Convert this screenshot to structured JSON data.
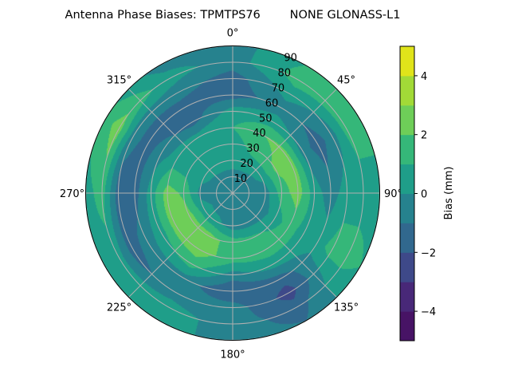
{
  "chart_data": {
    "type": "heatmap",
    "subtype": "polar filled contour",
    "title": "Antenna Phase Biases: TPMTPS76        NONE GLONASS-L1",
    "angular_direction": "clockwise",
    "zero_location": "top",
    "angular_tick_labels": [
      "0°",
      "45°",
      "90°",
      "135°",
      "180°",
      "225°",
      "270°",
      "315°"
    ],
    "radial_tick_labels": [
      "10",
      "20",
      "30",
      "40",
      "50",
      "60",
      "70",
      "80",
      "90"
    ],
    "radial_range": [
      0,
      90
    ],
    "grid": true,
    "colormap": "viridis",
    "levels": [
      -5,
      -4,
      -3,
      -2,
      -1,
      0,
      1,
      2,
      3,
      4,
      5
    ],
    "level_colors": [
      "#471365",
      "#482878",
      "#3e4989",
      "#31688e",
      "#26828e",
      "#1f9e89",
      "#35b779",
      "#6ece58",
      "#a2da37",
      "#e0e41a"
    ],
    "colorbar": {
      "label": "Bias (mm)",
      "tick_labels": [
        "−4",
        "−2",
        "0",
        "2",
        "4"
      ],
      "ticks": [
        -4,
        -2,
        0,
        2,
        4
      ],
      "range": [
        -5,
        5
      ],
      "placement": "right"
    },
    "grid_azimuths_deg": [
      0,
      30,
      60,
      90,
      120,
      150,
      180,
      210,
      240,
      270,
      300,
      330
    ],
    "grid_radii": [
      0,
      10,
      20,
      30,
      40,
      50,
      60,
      70,
      80,
      90
    ],
    "values_mm": [
      [
        -0.5,
        -0.5,
        -0.5,
        -0.5,
        -0.5,
        -0.5,
        -0.5,
        -0.5,
        -0.5,
        -0.5,
        -0.5,
        -0.5
      ],
      [
        -0.4,
        -0.4,
        -0.5,
        -0.5,
        -0.5,
        -0.5,
        -0.5,
        -0.5,
        -0.4,
        -0.5,
        -0.4,
        -0.4
      ],
      [
        0.5,
        0.5,
        0.3,
        -0.5,
        -0.5,
        -0.5,
        -0.5,
        0.3,
        0.5,
        -0.3,
        0.3,
        0.5
      ],
      [
        0.5,
        1.5,
        2.2,
        1.5,
        0.5,
        1.2,
        1.5,
        2.5,
        2.5,
        1.8,
        0.5,
        1.0
      ],
      [
        1.0,
        2.0,
        2.5,
        2.5,
        1.5,
        1.5,
        1.5,
        2.5,
        2.5,
        2.5,
        0.5,
        0.5
      ],
      [
        0.5,
        0.5,
        -0.5,
        0.5,
        0.5,
        0.5,
        -0.5,
        1.5,
        0.5,
        0.5,
        -0.5,
        -1.5
      ],
      [
        -1.5,
        -0.5,
        -1.5,
        -0.5,
        0.5,
        -1.5,
        -2.0,
        -0.5,
        -0.5,
        -1.5,
        -1.5,
        -1.5
      ],
      [
        -1.5,
        0.5,
        -0.5,
        0.5,
        1.5,
        -2.5,
        -0.5,
        -0.5,
        -1.5,
        -1.5,
        -0.5,
        -0.5
      ],
      [
        -0.5,
        1.5,
        1.5,
        0.5,
        1.5,
        -1.5,
        -0.5,
        0.5,
        0.5,
        1.5,
        2.5,
        0.5
      ],
      [
        -0.5,
        1.0,
        1.5,
        0.5,
        1.0,
        -1.0,
        -0.5,
        0.5,
        0.5,
        0.5,
        1.5,
        -0.5
      ]
    ]
  }
}
